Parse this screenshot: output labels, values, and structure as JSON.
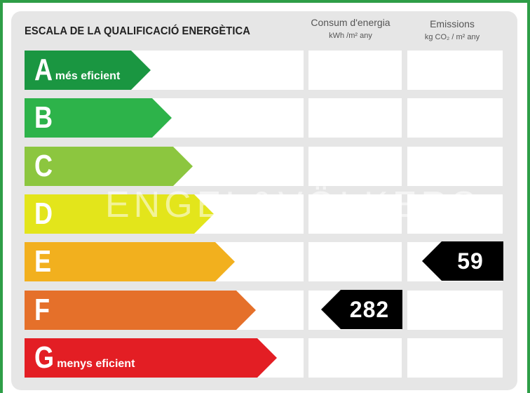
{
  "title": "ESCALA DE LA QUALIFICACIÓ ENERGÈTICA",
  "columns": {
    "consumption": {
      "line1": "Consum d'energia",
      "line2": "kWh /m²  any"
    },
    "emissions": {
      "line1": "Emissions",
      "line2": "kg CO₂  / m²  any"
    }
  },
  "ratings": [
    {
      "letter": "A",
      "label": "més eficient",
      "color": "#1a9641"
    },
    {
      "letter": "B",
      "label": "",
      "color": "#2db34a"
    },
    {
      "letter": "C",
      "label": "",
      "color": "#8cc63f"
    },
    {
      "letter": "D",
      "label": "",
      "color": "#e3e51b"
    },
    {
      "letter": "E",
      "label": "",
      "color": "#f2b01e"
    },
    {
      "letter": "F",
      "label": "",
      "color": "#e5702a"
    },
    {
      "letter": "G",
      "label": "menys eficient",
      "color": "#e31e24"
    }
  ],
  "consumption_value": {
    "rating": "F",
    "value": "282"
  },
  "emissions_value": {
    "rating": "E",
    "value": "59"
  },
  "watermark": "ENGEL&VÖLKERS"
}
